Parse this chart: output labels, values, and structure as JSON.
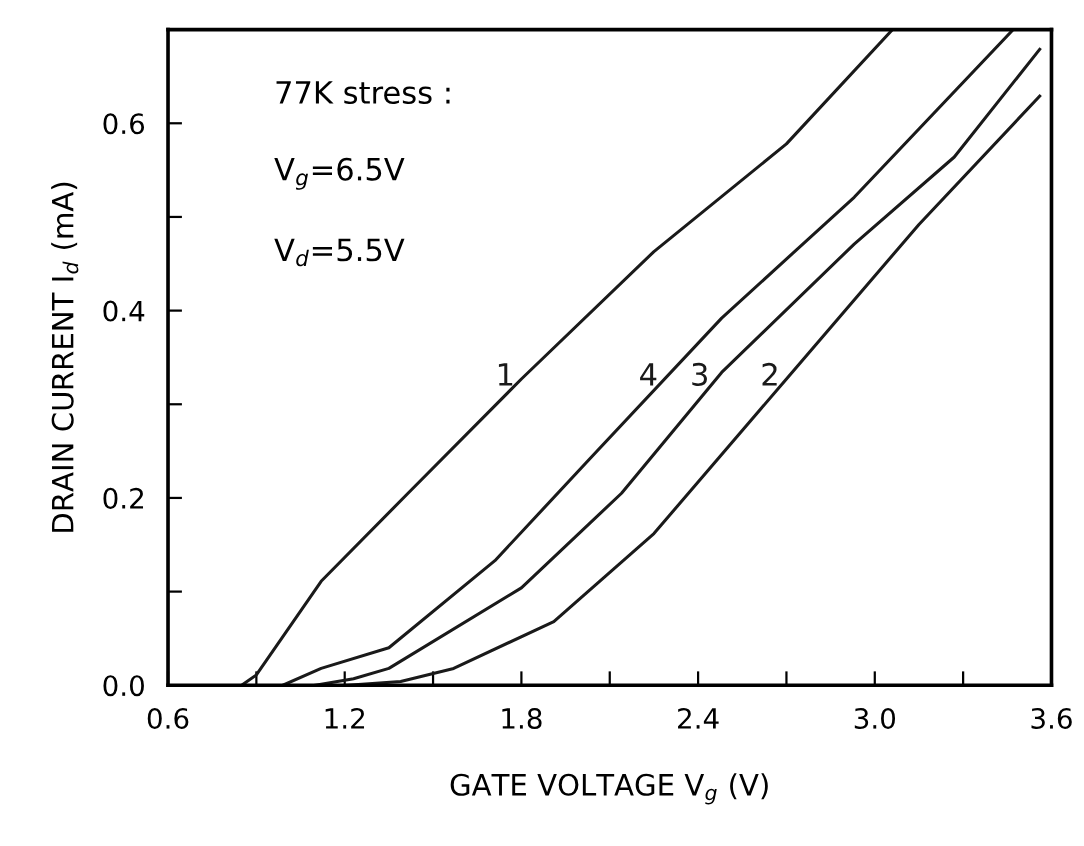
{
  "chart_data": {
    "type": "line",
    "xlabel": "GATE VOLTAGE V$_{g}$ (V)",
    "ylabel": "DRAIN CURRENT I$_{d}$ (mA)",
    "xlim": [
      0.6,
      3.6
    ],
    "ylim": [
      0,
      0.7
    ],
    "xticks": [
      0.6,
      {
        "value": 0.9,
        "label": null
      },
      1.2,
      {
        "value": 1.5,
        "label": null
      },
      1.8,
      {
        "value": 2.1,
        "label": null
      },
      2.4,
      {
        "value": 2.7,
        "label": null
      },
      {
        "value": 3,
        "label": "3.0"
      },
      {
        "value": 3.3,
        "label": null
      },
      3.6
    ],
    "yticks": [
      {
        "value": 0,
        "label": "0.0"
      },
      {
        "value": 0.1,
        "label": null
      },
      0.2,
      {
        "value": 0.3,
        "label": null
      },
      0.4,
      {
        "value": 0.5,
        "label": null
      },
      0.6
    ],
    "grid": false,
    "legend": false,
    "marker": "none",
    "line_style": "solid",
    "series": [
      {
        "name": "1",
        "color": "#1a1a1a",
        "x": [
          0.85,
          0.9,
          1.12,
          1.415,
          1.8,
          2.25,
          2.7,
          3.06
        ],
        "values": [
          0.0,
          0.011,
          0.111,
          0.205,
          0.327,
          0.463,
          0.578,
          0.7
        ]
      },
      {
        "name": "2",
        "color": "#1a1a1a",
        "x": [
          1.21,
          1.39,
          1.57,
          1.91,
          2.25,
          2.7,
          3.15,
          3.56
        ],
        "values": [
          0.0,
          0.004,
          0.018,
          0.068,
          0.162,
          0.327,
          0.492,
          0.629
        ]
      },
      {
        "name": "3",
        "color": "#1a1a1a",
        "x": [
          1.1,
          1.23,
          1.35,
          1.8,
          2.14,
          2.48,
          2.93,
          3.27,
          3.56
        ],
        "values": [
          0.0,
          0.007,
          0.018,
          0.104,
          0.205,
          0.334,
          0.471,
          0.564,
          0.679
        ]
      },
      {
        "name": "4",
        "color": "#1a1a1a",
        "x": [
          0.99,
          1.12,
          1.35,
          1.71,
          2.03,
          2.48,
          2.93,
          3.47
        ],
        "values": [
          0.0,
          0.018,
          0.04,
          0.133,
          0.241,
          0.392,
          0.521,
          0.7
        ]
      }
    ],
    "annotations": [
      "77K stress :",
      "V$_{g}$=6.5V",
      "V$_{d}$=5.5V"
    ]
  }
}
